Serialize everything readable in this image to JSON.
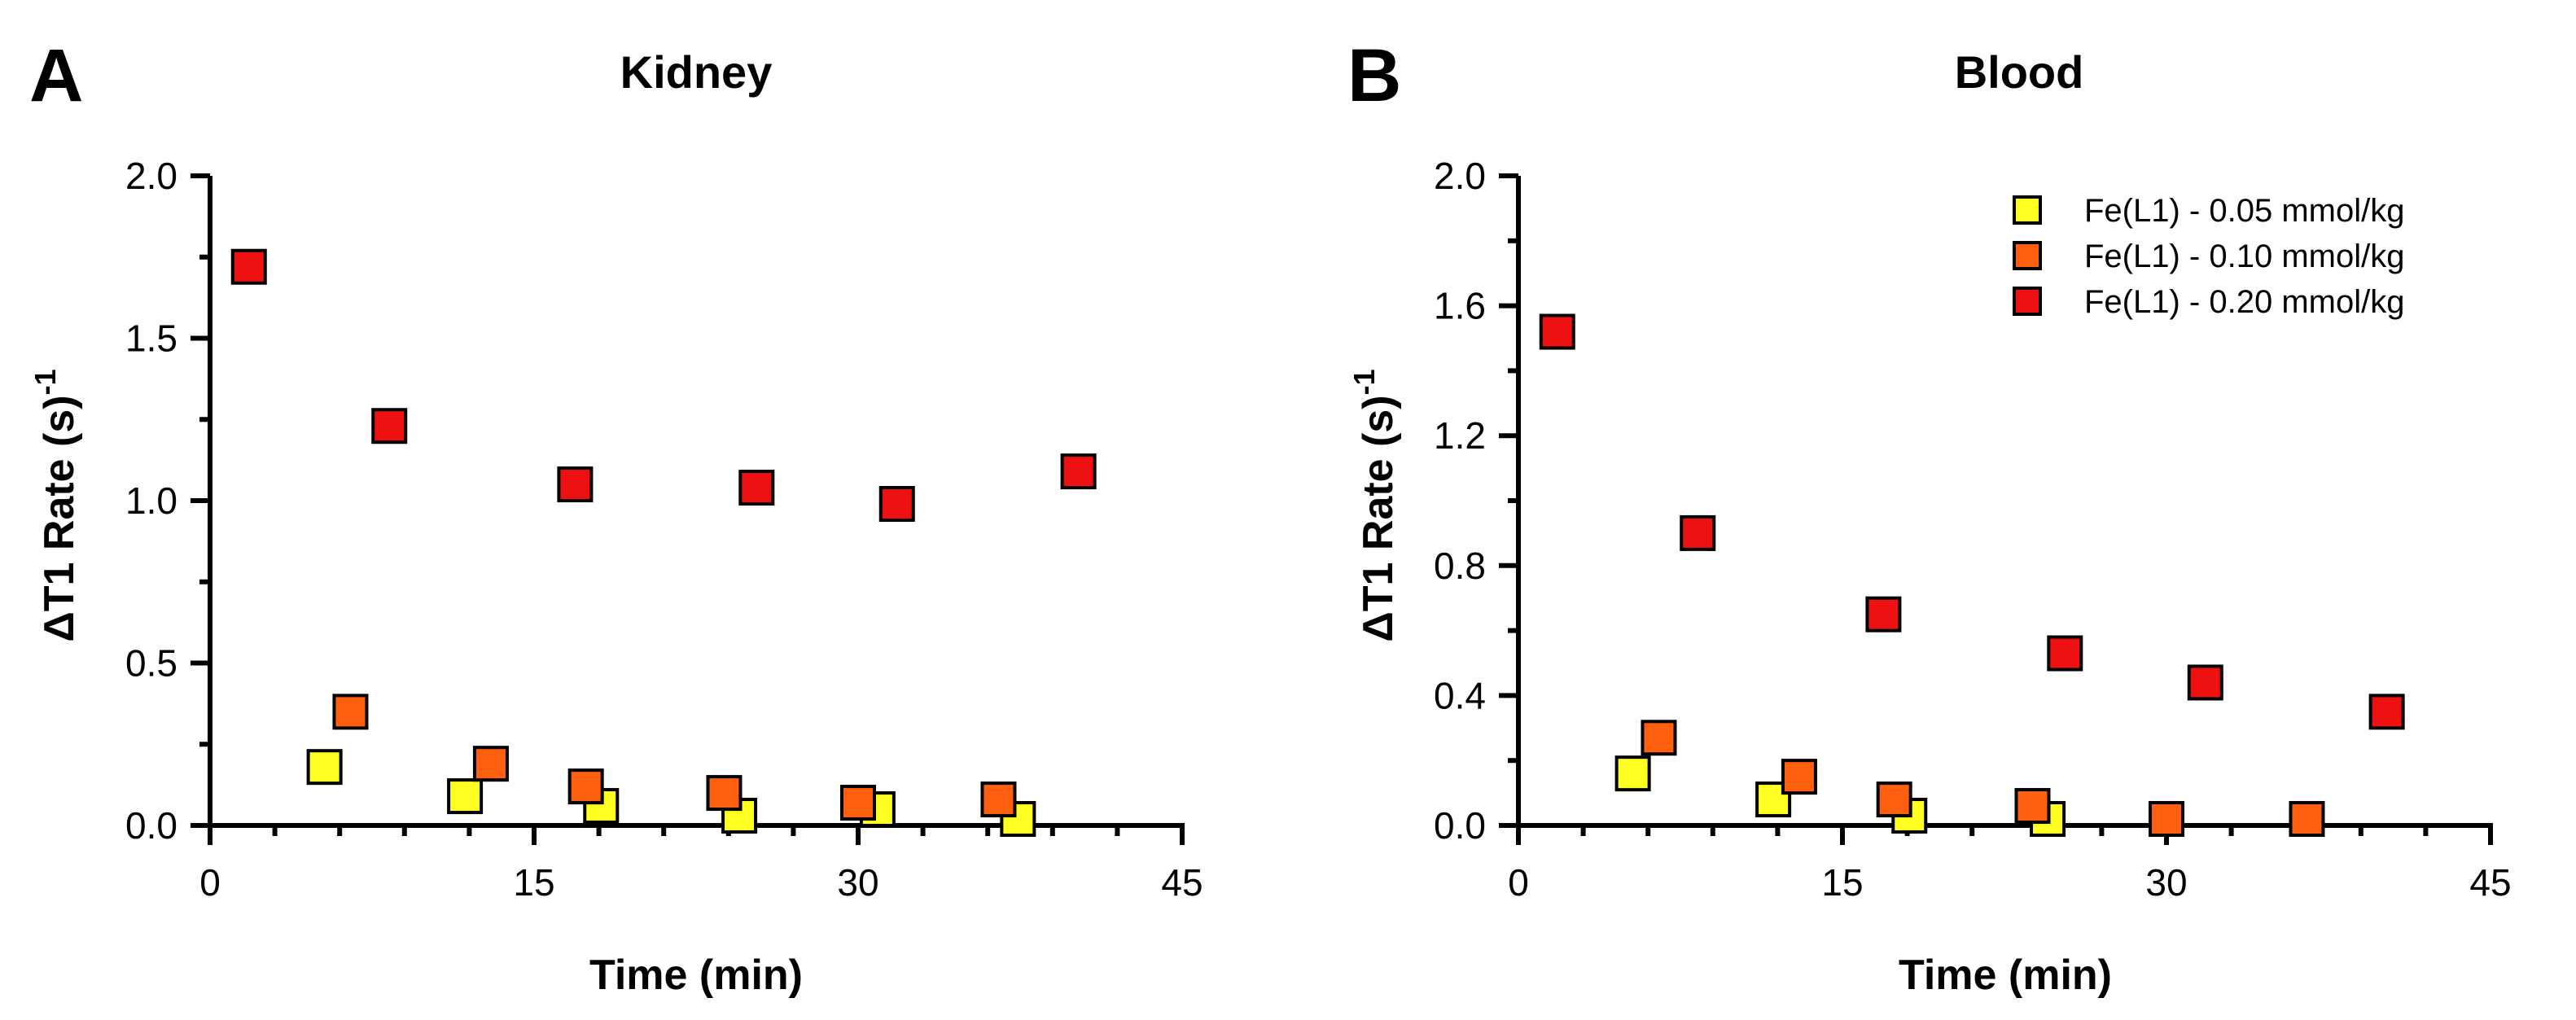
{
  "series_colors": {
    "Fe(L1) - 0.05 mmol/kg": "#FFFF22",
    "Fe(L1) - 0.10 mmol/kg": "#FF6010",
    "Fe(L1) - 0.20 mmol/kg": "#EE1111"
  },
  "chart_data": [
    {
      "panel": "A",
      "type": "scatter",
      "title": "Kidney",
      "xlabel": "Time (min)",
      "ylabel": "ΔT1 Rate (s)",
      "ylabel_sup": "-1",
      "xlim": [
        0,
        45
      ],
      "ylim": [
        0,
        2.0
      ],
      "xticks": [
        "0",
        "15",
        "30",
        "45"
      ],
      "xtick_values": [
        0,
        15,
        30,
        45
      ],
      "yticks": [
        "0.0",
        "0.5",
        "1.0",
        "1.5",
        "2.0"
      ],
      "ytick_values": [
        0,
        0.5,
        1.0,
        1.5,
        2.0
      ],
      "x_minor_step": 3,
      "y_minor_step": 0.25,
      "legend": null,
      "series": [
        {
          "name": "Fe(L1) - 0.05 mmol/kg",
          "x": [
            5.3,
            11.8,
            18.1,
            24.5,
            30.9,
            37.4
          ],
          "y": [
            0.18,
            0.09,
            0.06,
            0.03,
            0.05,
            0.02
          ]
        },
        {
          "name": "Fe(L1) - 0.10 mmol/kg",
          "x": [
            6.5,
            13.0,
            17.4,
            23.8,
            30.0,
            36.5
          ],
          "y": [
            0.35,
            0.19,
            0.12,
            0.1,
            0.07,
            0.08
          ]
        },
        {
          "name": "Fe(L1) - 0.20 mmol/kg",
          "x": [
            1.8,
            8.3,
            16.9,
            25.3,
            31.8,
            40.2
          ],
          "y": [
            1.72,
            1.23,
            1.05,
            1.04,
            0.99,
            1.09
          ]
        }
      ]
    },
    {
      "panel": "B",
      "type": "scatter",
      "title": "Blood",
      "xlabel": "Time (min)",
      "ylabel": "ΔT1 Rate (s)",
      "ylabel_sup": "-1",
      "xlim": [
        0,
        45
      ],
      "ylim": [
        0,
        2.0
      ],
      "xticks": [
        "0",
        "15",
        "30",
        "45"
      ],
      "xtick_values": [
        0,
        15,
        30,
        45
      ],
      "yticks": [
        "0.0",
        "0.4",
        "0.8",
        "1.2",
        "1.6",
        "2.0"
      ],
      "ytick_values": [
        0,
        0.4,
        0.8,
        1.2,
        1.6,
        2.0
      ],
      "x_minor_step": 3,
      "y_minor_step": 0.2,
      "legend": "top-right",
      "series": [
        {
          "name": "Fe(L1) - 0.05 mmol/kg",
          "x": [
            5.3,
            11.8,
            18.1,
            24.5
          ],
          "y": [
            0.16,
            0.08,
            0.03,
            0.02
          ]
        },
        {
          "name": "Fe(L1) - 0.10 mmol/kg",
          "x": [
            6.5,
            13.0,
            17.4,
            23.8,
            30.0,
            36.5
          ],
          "y": [
            0.27,
            0.15,
            0.08,
            0.06,
            0.02,
            0.02
          ]
        },
        {
          "name": "Fe(L1) - 0.20 mmol/kg",
          "x": [
            1.8,
            8.3,
            16.9,
            25.3,
            31.8,
            40.2
          ],
          "y": [
            1.52,
            0.9,
            0.65,
            0.53,
            0.44,
            0.35
          ]
        }
      ]
    }
  ]
}
